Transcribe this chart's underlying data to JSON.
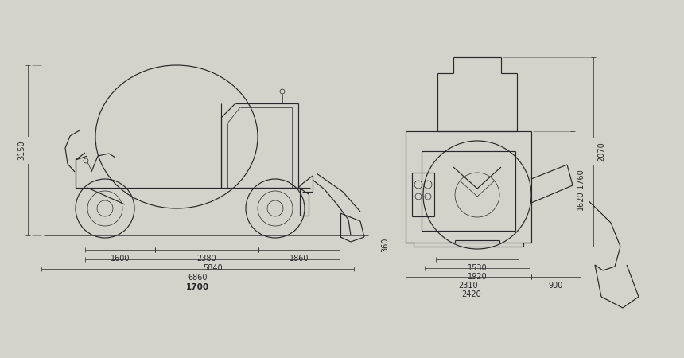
{
  "bg_color": "#d3d2cb",
  "line_color": "#282828",
  "lw": 0.85,
  "tlw": 0.5,
  "fs": 7.0,
  "side": {
    "labels": {
      "3150": "3150",
      "1600": "1600",
      "2380": "2380",
      "1860": "1860",
      "5840": "5840",
      "6860": "6860",
      "1700": "1700"
    }
  },
  "front": {
    "labels": {
      "360": "360",
      "1530": "1530",
      "1920": "1920",
      "2310": "2310",
      "900": "900",
      "2420": "2420",
      "1620_1760": "1620-1760",
      "2070": "2070"
    }
  }
}
